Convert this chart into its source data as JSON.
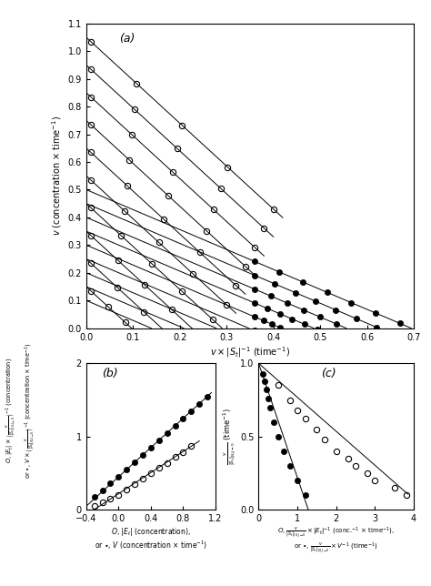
{
  "panel_a": {
    "title": "(a)",
    "xlabel": "$v \\times |S_t|^{-1}$ (time$^{-1}$)",
    "ylabel": "$v$ (concentration $\\times$ time$^{-1}$)",
    "xlim": [
      0,
      0.7
    ],
    "ylim": [
      0,
      1.1
    ],
    "xticks": [
      0,
      0.1,
      0.2,
      0.3,
      0.4,
      0.5,
      0.6,
      0.7
    ],
    "yticks": [
      0,
      0.1,
      0.2,
      0.3,
      0.4,
      0.5,
      0.6,
      0.7,
      0.8,
      0.9,
      1.0,
      1.1
    ],
    "open_lines": [
      {
        "intercept": 1.05,
        "slope": -1.55,
        "n_pts": 5,
        "x_start": 0.01,
        "x_end": 0.4
      },
      {
        "intercept": 0.95,
        "slope": -1.55,
        "n_pts": 5,
        "x_start": 0.01,
        "x_end": 0.38
      },
      {
        "intercept": 0.85,
        "slope": -1.55,
        "n_pts": 5,
        "x_start": 0.01,
        "x_end": 0.36
      },
      {
        "intercept": 0.75,
        "slope": -1.55,
        "n_pts": 5,
        "x_start": 0.01,
        "x_end": 0.34
      },
      {
        "intercept": 0.65,
        "slope": -1.55,
        "n_pts": 5,
        "x_start": 0.01,
        "x_end": 0.32
      },
      {
        "intercept": 0.55,
        "slope": -1.55,
        "n_pts": 5,
        "x_start": 0.01,
        "x_end": 0.3
      },
      {
        "intercept": 0.45,
        "slope": -1.55,
        "n_pts": 5,
        "x_start": 0.01,
        "x_end": 0.27
      },
      {
        "intercept": 0.35,
        "slope": -1.55,
        "n_pts": 5,
        "x_start": 0.01,
        "x_end": 0.24
      },
      {
        "intercept": 0.25,
        "slope": -1.55,
        "n_pts": 4,
        "x_start": 0.01,
        "x_end": 0.18
      },
      {
        "intercept": 0.15,
        "slope": -1.55,
        "n_pts": 4,
        "x_start": 0.01,
        "x_end": 0.12
      }
    ],
    "filled_lines": [
      {
        "intercept": 0.5,
        "slope": -0.72,
        "n_pts": 7,
        "x_start": 0.36,
        "x_end": 0.67
      },
      {
        "intercept": 0.45,
        "slope": -0.72,
        "n_pts": 7,
        "x_start": 0.36,
        "x_end": 0.62
      },
      {
        "intercept": 0.4,
        "slope": -0.72,
        "n_pts": 7,
        "x_start": 0.36,
        "x_end": 0.57
      },
      {
        "intercept": 0.35,
        "slope": -0.72,
        "n_pts": 7,
        "x_start": 0.36,
        "x_end": 0.52
      },
      {
        "intercept": 0.3,
        "slope": -0.72,
        "n_pts": 7,
        "x_start": 0.36,
        "x_end": 0.47
      },
      {
        "intercept": 0.25,
        "slope": -0.72,
        "n_pts": 7,
        "x_start": 0.36,
        "x_end": 0.42
      },
      {
        "intercept": 0.2,
        "slope": -0.72,
        "n_pts": 6,
        "x_start": 0.36,
        "x_end": 0.4
      },
      {
        "intercept": 0.15,
        "slope": -0.72,
        "n_pts": 5,
        "x_start": 0.36,
        "x_end": 0.39
      },
      {
        "intercept": 0.1,
        "slope": -0.72,
        "n_pts": 4,
        "x_start": 0.36,
        "x_end": 0.38
      }
    ]
  },
  "panel_b": {
    "title": "(b)",
    "xlabel_open": "$O$, $|E_t|$ (concentration),",
    "xlabel_filled": "or $\\bullet$, $V$ (concentration $\\times$ time$^{-1}$)",
    "xlim": [
      -0.4,
      1.2
    ],
    "ylim": [
      0,
      2.0
    ],
    "xticks": [
      -0.4,
      0,
      0.4,
      0.8,
      1.2
    ],
    "yticks": [
      0,
      1.0,
      2.0
    ],
    "open_data_x": [
      -0.3,
      -0.2,
      -0.1,
      0.0,
      0.1,
      0.2,
      0.3,
      0.4,
      0.5,
      0.6,
      0.7,
      0.8,
      0.9
    ],
    "open_data_y": [
      0.05,
      0.1,
      0.15,
      0.2,
      0.28,
      0.35,
      0.42,
      0.5,
      0.57,
      0.64,
      0.72,
      0.79,
      0.87
    ],
    "filled_data_x": [
      -0.3,
      -0.2,
      -0.1,
      0.0,
      0.1,
      0.2,
      0.3,
      0.4,
      0.5,
      0.6,
      0.7,
      0.8,
      0.9,
      1.0,
      1.1
    ],
    "filled_data_y": [
      0.18,
      0.27,
      0.36,
      0.45,
      0.55,
      0.65,
      0.75,
      0.85,
      0.95,
      1.05,
      1.15,
      1.25,
      1.35,
      1.45,
      1.55
    ],
    "open_line": {
      "x_start": -0.4,
      "x_end": 1.0,
      "intercept": 0.22,
      "slope": 0.72
    },
    "filled_line": {
      "x_start": -0.4,
      "x_end": 1.15,
      "intercept": 0.45,
      "slope": 1.0
    }
  },
  "panel_c": {
    "title": "(c)",
    "xlabel_open": "$O$, $\\frac{v}{|S_t|_{|S_t|\\to 0}} \\times |E_t|^{-1}$ (conc.$^{-1}$ $\\times$ time$^{-1}$),",
    "xlabel_filled": "or $\\bullet$, $\\frac{v}{|S_t|_{|S_t|\\to 0}} \\times V^{-1}$ (time$^{-1}$)",
    "ylabel": "$\\frac{v}{|S_t|_{|S_t|\\to 0}}$ (time$^{-1}$)",
    "xlim": [
      0,
      4.0
    ],
    "ylim": [
      0,
      1.0
    ],
    "xticks": [
      0,
      1.0,
      2.0,
      3.0,
      4.0
    ],
    "yticks": [
      0,
      0.5,
      1.0
    ],
    "open_data_x": [
      0.5,
      0.8,
      1.0,
      1.2,
      1.5,
      1.7,
      2.0,
      2.3,
      2.5,
      2.8,
      3.0,
      3.5,
      3.8
    ],
    "open_data_y": [
      0.85,
      0.75,
      0.68,
      0.62,
      0.55,
      0.48,
      0.4,
      0.35,
      0.3,
      0.25,
      0.2,
      0.15,
      0.1
    ],
    "filled_data_x": [
      0.1,
      0.15,
      0.2,
      0.25,
      0.3,
      0.4,
      0.5,
      0.65,
      0.8,
      1.0,
      1.2
    ],
    "filled_data_y": [
      0.93,
      0.88,
      0.82,
      0.76,
      0.7,
      0.6,
      0.5,
      0.4,
      0.3,
      0.2,
      0.1
    ],
    "open_line": {
      "x_start": 0,
      "x_end": 3.85,
      "intercept": 1.0,
      "slope": -0.232
    },
    "filled_line": {
      "x_start": 0,
      "x_end": 1.28,
      "intercept": 1.0,
      "slope": -0.78
    }
  },
  "markersize_a": 4.5,
  "markersize_bc": 4.5
}
